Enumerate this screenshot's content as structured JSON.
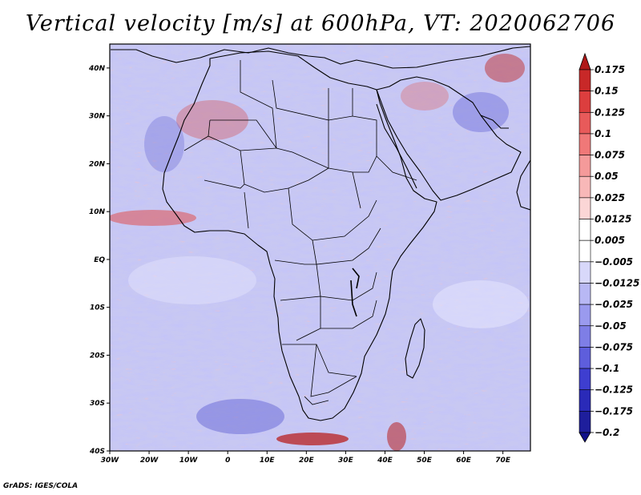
{
  "title": "Vertical velocity [m/s] at 600hPa, VT: 2020062706",
  "map": {
    "lat_labels": [
      "40N",
      "30N",
      "20N",
      "10N",
      "EQ",
      "10S",
      "20S",
      "30S",
      "40S"
    ],
    "lon_labels": [
      "30W",
      "20W",
      "10W",
      "0",
      "10E",
      "20E",
      "30E",
      "40E",
      "50E",
      "60E",
      "70E"
    ],
    "lat_range": [
      -40,
      45
    ],
    "lon_range": [
      -30,
      77
    ]
  },
  "colorbar": {
    "labels": [
      "0.175",
      "0.15",
      "0.125",
      "0.1",
      "0.075",
      "0.05",
      "0.025",
      "0.0125",
      "0.005",
      "−0.005",
      "−0.0125",
      "−0.025",
      "−0.05",
      "−0.075",
      "−0.1",
      "−0.125",
      "−0.175",
      "−0.2"
    ],
    "colors": [
      "#b01818",
      "#c82828",
      "#dc3e3e",
      "#e85a5a",
      "#f07878",
      "#f49a9a",
      "#f8b8b8",
      "#fbd6d6",
      "#ffffff",
      "#ffffff",
      "#d8d8fa",
      "#b8b8f4",
      "#9a9aee",
      "#7e7ee6",
      "#5e5edc",
      "#3e3ed0",
      "#2a2ab8",
      "#1e1e9c",
      "#10108a"
    ]
  },
  "credit": "GrADS: IGES/COLA"
}
